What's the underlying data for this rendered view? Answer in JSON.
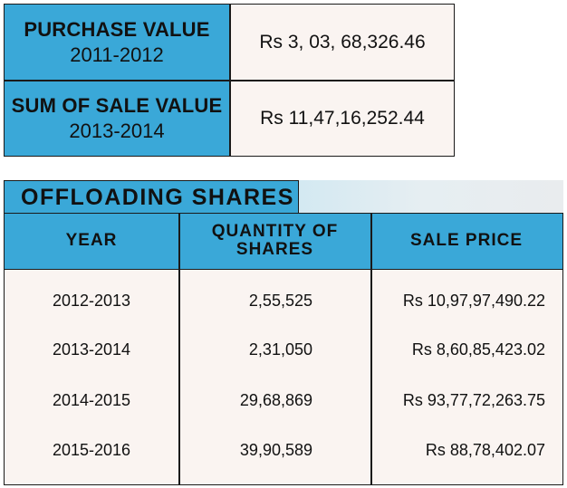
{
  "summary": {
    "purchase": {
      "label": "PURCHASE VALUE",
      "period": "2011-2012",
      "value": "Rs 3, 03, 68,326.46"
    },
    "sale": {
      "label": "SUM OF SALE VALUE",
      "period": "2013-2014",
      "value": "Rs 11,47,16,252.44"
    }
  },
  "offloading": {
    "title": "OFFLOADING SHARES",
    "headers": {
      "year": "YEAR",
      "quantity_line1": "QUANTITY OF",
      "quantity_line2": "SHARES",
      "price": "SALE PRICE"
    },
    "rows": [
      {
        "year": "2012-2013",
        "quantity": "2,55,525",
        "price": "Rs 10,97,97,490.22"
      },
      {
        "year": "2013-2014",
        "quantity": "2,31,050",
        "price": "Rs 8,60,85,423.02"
      },
      {
        "year": "2014-2015",
        "quantity": "29,68,869",
        "price": "Rs 93,77,72,263.75"
      },
      {
        "year": "2015-2016",
        "quantity": "39,90,589",
        "price": "Rs 88,78,402.07"
      }
    ]
  },
  "colors": {
    "header_blue": "#3aa8d8",
    "cell_bg": "#faf4f1",
    "border": "#1a1a1a"
  }
}
